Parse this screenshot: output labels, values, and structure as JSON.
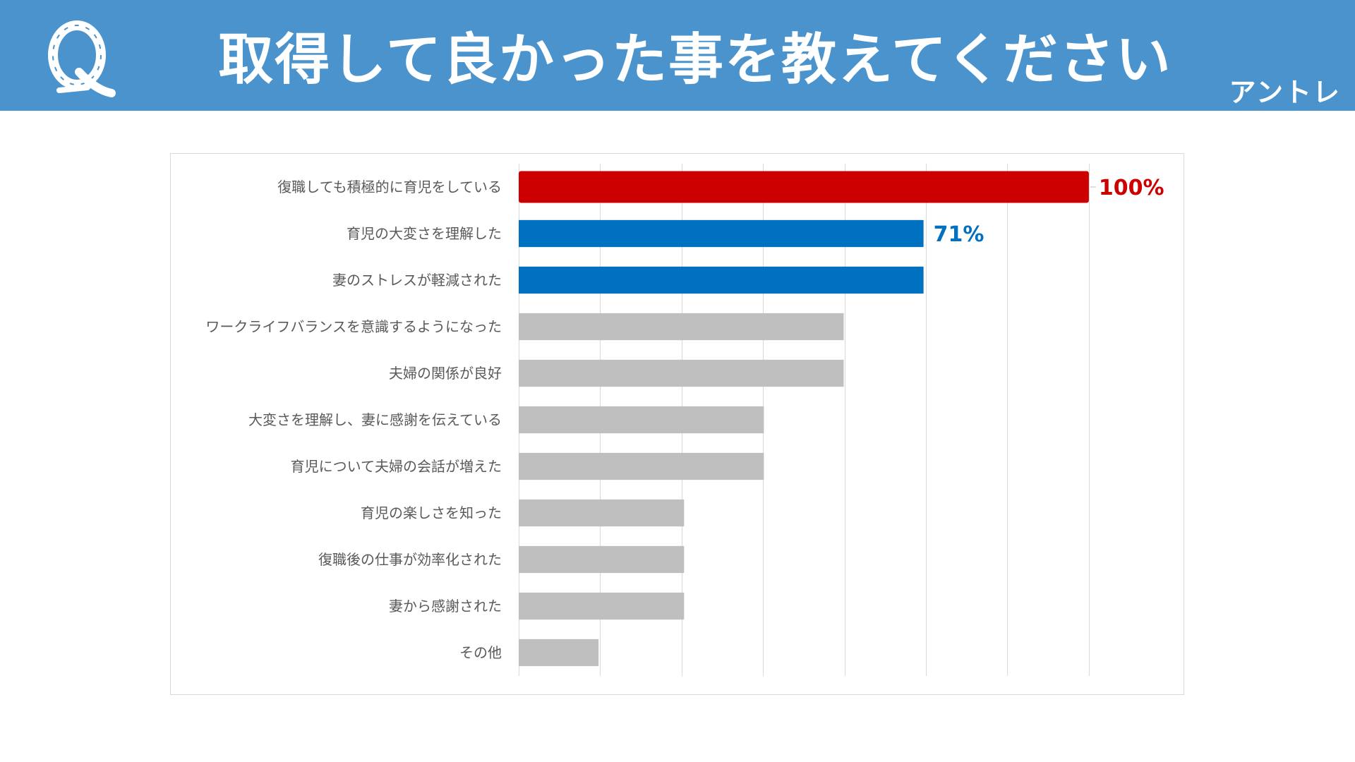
{
  "header": {
    "title": "取得して良かった事を教えてください",
    "brand": "アントレ",
    "q_mark": "Q"
  },
  "colors": {
    "header_bg": "#4a93cd",
    "top_bar": "#cc0000",
    "highlight_bar": "#0070c0",
    "other_bar": "#bfbfbf",
    "gridline": "#d9d9d9",
    "label_text": "#595959"
  },
  "chart_data": {
    "type": "bar",
    "orientation": "horizontal",
    "title": "取得して良かった事を教えてください",
    "categories": [
      "復職しても積極的に育児をしている",
      "育児の大変さを理解した",
      "妻のストレスが軽減された",
      "ワークライフバランスを意識するようになった",
      "夫婦の関係が良好",
      "大変さを理解し、妻に感謝を伝えている",
      "育児について夫婦の会話が増えた",
      "育児の楽しさを知った",
      "復職後の仕事が効率化された",
      "妻から感謝された",
      "その他"
    ],
    "values": [
      100,
      71,
      71,
      57,
      57,
      43,
      43,
      29,
      29,
      29,
      14
    ],
    "bar_colors": [
      "#cc0000",
      "#0070c0",
      "#0070c0",
      "#bfbfbf",
      "#bfbfbf",
      "#bfbfbf",
      "#bfbfbf",
      "#bfbfbf",
      "#bfbfbf",
      "#bfbfbf",
      "#bfbfbf"
    ],
    "data_labels": [
      "100%",
      "71%",
      "",
      "",
      "",
      "",
      "",
      "",
      "",
      "",
      ""
    ],
    "xlim": [
      0,
      114
    ],
    "grid_step": 14.2857,
    "xlabel": "",
    "ylabel": "",
    "grid": true,
    "show_x_ticks": false
  }
}
